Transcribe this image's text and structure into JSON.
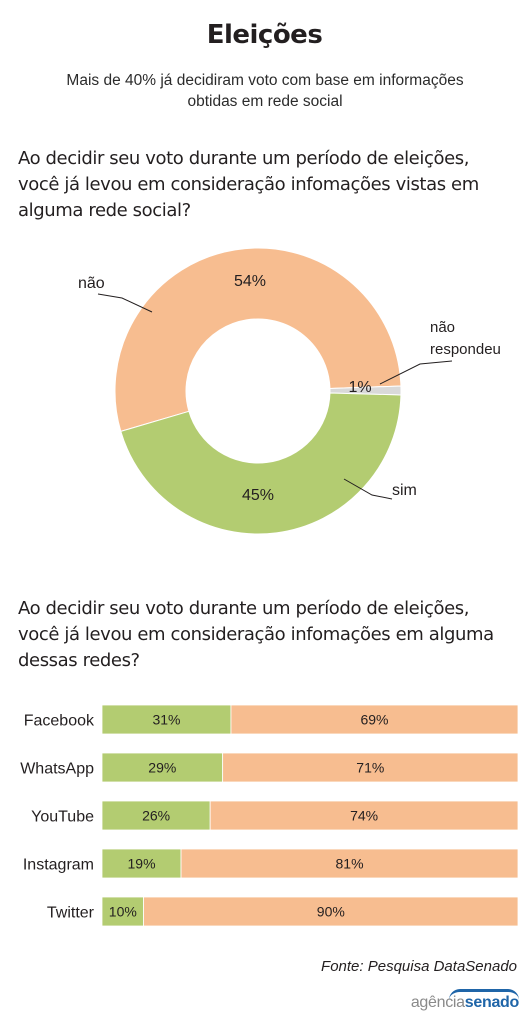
{
  "title": "Eleições",
  "subtitle": "Mais de 40% já decidiram voto com base em informações obtidas em rede social",
  "colors": {
    "sim": "#b3cc71",
    "nao": "#f7bd90",
    "nao_respondeu": "#d9d9d9"
  },
  "source": "Fonte: Pesquisa DataSenado",
  "logo": {
    "part1": "agência",
    "part2": "senado"
  },
  "chart_data": [
    {
      "type": "pie",
      "title": "Ao decidir seu voto durante um período de eleições, você já levou em consideração infomações vistas em alguma rede social?",
      "categories": [
        "não",
        "não respondeu",
        "sim"
      ],
      "values": [
        54,
        1,
        45
      ],
      "value_labels": [
        "54%",
        "1%",
        "45%"
      ],
      "donut": true
    },
    {
      "type": "bar",
      "orientation": "horizontal",
      "stacked": true,
      "title": "Ao decidir seu voto durante um período de eleições, você já levou em consideração infomações em alguma dessas redes?",
      "categories": [
        "Facebook",
        "WhatsApp",
        "YouTube",
        "Instagram",
        "Twitter"
      ],
      "series": [
        {
          "values": [
            31,
            29,
            26,
            19,
            10
          ],
          "labels": [
            "31%",
            "29%",
            "26%",
            "19%",
            "10%"
          ]
        },
        {
          "values": [
            69,
            71,
            74,
            81,
            90
          ],
          "labels": [
            "69%",
            "71%",
            "74%",
            "81%",
            "90%"
          ]
        }
      ],
      "xlim": [
        0,
        100
      ]
    }
  ]
}
